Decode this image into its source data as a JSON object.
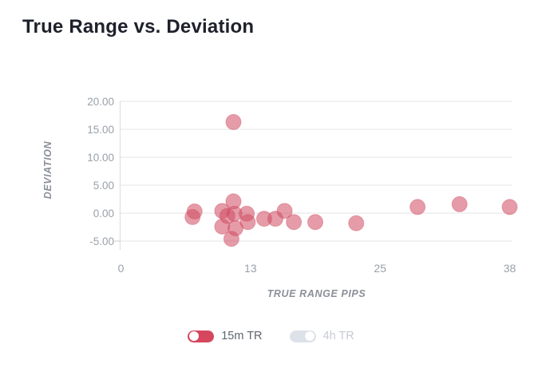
{
  "title": "True Range vs. Deviation",
  "colors": {
    "accent_red": "#d6475e",
    "point_fill": "#d04a61",
    "toggle_off_bg": "#dde2e9",
    "title_text": "#1d212b",
    "tick_text": "#9aa1a9",
    "axis_title_text": "#8b9099",
    "gridline": "#e9e9eb"
  },
  "chart_data": {
    "type": "scatter",
    "title": "True Range vs. Deviation",
    "xlabel": "TRUE RANGE PIPS",
    "ylabel": "DEVIATION",
    "xlim": [
      0,
      38
    ],
    "ylim": [
      -6.6,
      20
    ],
    "grid": "horizontal",
    "x_ticks": [
      "0",
      "13",
      "25",
      "38"
    ],
    "x_tick_values": [
      0,
      12.667,
      25.333,
      38
    ],
    "y_ticks": [
      "20.00",
      "15.00",
      "10.00",
      "5.00",
      "0.00",
      "-5.00"
    ],
    "y_tick_values": [
      20,
      15,
      10,
      5,
      0,
      -5
    ],
    "legend_position": "bottom",
    "series": [
      {
        "name": "15m TR",
        "color": "#d04a61",
        "opacity": 0.55,
        "points": [
          [
            7.2,
            0.3
          ],
          [
            7.0,
            -0.7
          ],
          [
            11.0,
            16.3
          ],
          [
            11.0,
            2.1
          ],
          [
            9.9,
            0.4
          ],
          [
            10.4,
            -0.5
          ],
          [
            11.1,
            -0.1
          ],
          [
            12.3,
            -0.1
          ],
          [
            12.4,
            -1.6
          ],
          [
            9.9,
            -2.4
          ],
          [
            11.2,
            -2.7
          ],
          [
            10.8,
            -4.6
          ],
          [
            14.0,
            -1.0
          ],
          [
            15.1,
            -1.0
          ],
          [
            16.0,
            0.4
          ],
          [
            16.9,
            -1.6
          ],
          [
            19.0,
            -1.6
          ],
          [
            23.0,
            -1.8
          ],
          [
            29.0,
            1.1
          ],
          [
            33.1,
            1.6
          ],
          [
            38.0,
            1.1
          ]
        ]
      },
      {
        "name": "4h TR",
        "visible": false,
        "points": []
      }
    ]
  },
  "legend": {
    "items": [
      {
        "label": "15m TR",
        "active": true,
        "knob_side": "left",
        "toggle_color": "#d6475e",
        "label_color": "#60656d"
      },
      {
        "label": "4h TR",
        "active": false,
        "knob_side": "right",
        "toggle_color": "#dde2e9",
        "label_color": "#c6cbd3"
      }
    ]
  }
}
